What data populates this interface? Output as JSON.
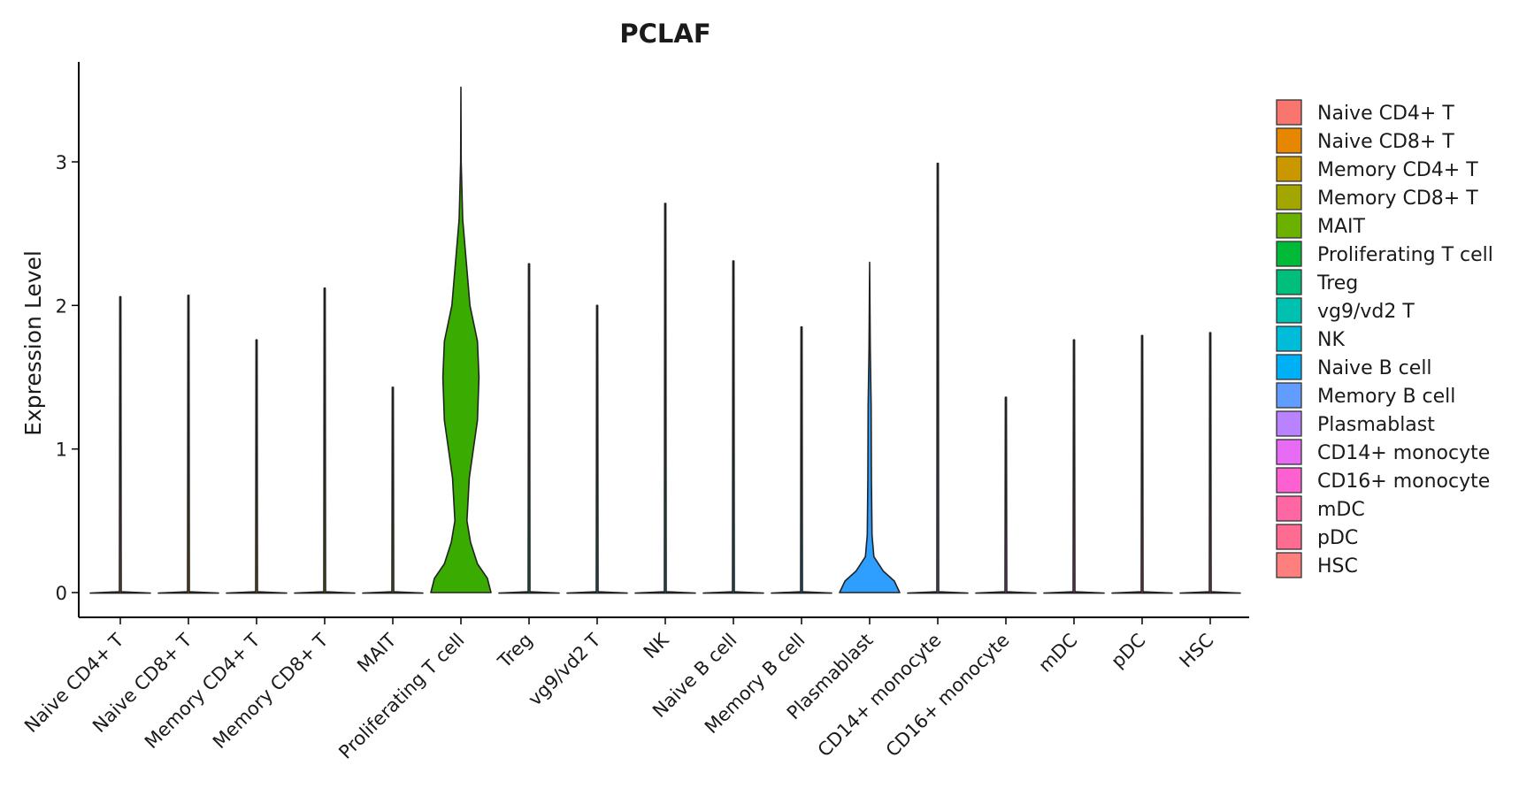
{
  "chart_data": {
    "type": "violin",
    "title": "PCLAF",
    "xlabel": "",
    "ylabel": "Expression Level",
    "ylim": [
      -0.18,
      3.68
    ],
    "yticks": [
      0,
      1,
      2,
      3
    ],
    "categories": [
      "Naive CD4+ T",
      "Naive CD8+ T",
      "Memory CD4+ T",
      "Memory CD8+ T",
      "MAIT",
      "Proliferating T cell",
      "Treg",
      "vg9/vd2 T",
      "NK",
      "Naive B cell",
      "Memory B cell",
      "Plasmablast",
      "CD14+ monocyte",
      "CD16+ monocyte",
      "mDC",
      "pDC",
      "HSC"
    ],
    "colors": [
      "#F8766D",
      "#E58700",
      "#C99800",
      "#A3A500",
      "#6BB100",
      "#00BA38",
      "#00BF7D",
      "#00C0AF",
      "#00BCD8",
      "#00B0F6",
      "#619CFF",
      "#B983FF",
      "#E76BF3",
      "#FD61D1",
      "#FF67A4",
      "#FF6C91",
      "#FF7F7F"
    ],
    "violin_colors": [
      "#F8766D",
      "#E58700",
      "#C99800",
      "#A3A500",
      "#6BB100",
      "#3AAB00",
      "#00BF7D",
      "#00C0AF",
      "#00BCD8",
      "#00B0F6",
      "#00A9FF",
      "#2E9FFF",
      "#B983FF",
      "#E76BF3",
      "#FD61D1",
      "#FF67A4",
      "#FF6C91"
    ],
    "max_values": [
      2.06,
      2.07,
      1.76,
      2.12,
      1.43,
      3.52,
      2.29,
      2.0,
      2.71,
      2.31,
      1.85,
      2.3,
      2.99,
      1.36,
      1.76,
      1.79,
      1.81
    ],
    "density_profiles": {
      "Proliferating T cell": [
        [
          0.0,
          1.0
        ],
        [
          0.1,
          0.88
        ],
        [
          0.2,
          0.55
        ],
        [
          0.35,
          0.32
        ],
        [
          0.5,
          0.2
        ],
        [
          0.8,
          0.28
        ],
        [
          1.2,
          0.55
        ],
        [
          1.5,
          0.6
        ],
        [
          1.75,
          0.55
        ],
        [
          2.0,
          0.3
        ],
        [
          2.3,
          0.18
        ],
        [
          2.6,
          0.06
        ],
        [
          3.0,
          0.01
        ],
        [
          3.52,
          0.0
        ]
      ],
      "Plasmablast": [
        [
          0.0,
          1.0
        ],
        [
          0.08,
          0.82
        ],
        [
          0.15,
          0.45
        ],
        [
          0.25,
          0.14
        ],
        [
          0.4,
          0.08
        ],
        [
          0.8,
          0.06
        ],
        [
          1.3,
          0.05
        ],
        [
          1.7,
          0.02
        ],
        [
          2.3,
          0.0
        ]
      ]
    },
    "legend": [
      "Naive CD4+ T",
      "Naive CD8+ T",
      "Memory CD4+ T",
      "Memory CD8+ T",
      "MAIT",
      "Proliferating T cell",
      "Treg",
      "vg9/vd2 T",
      "NK",
      "Naive B cell",
      "Memory B cell",
      "Plasmablast",
      "CD14+ monocyte",
      "CD16+ monocyte",
      "mDC",
      "pDC",
      "HSC"
    ],
    "legend_position": "right",
    "grid": false
  }
}
